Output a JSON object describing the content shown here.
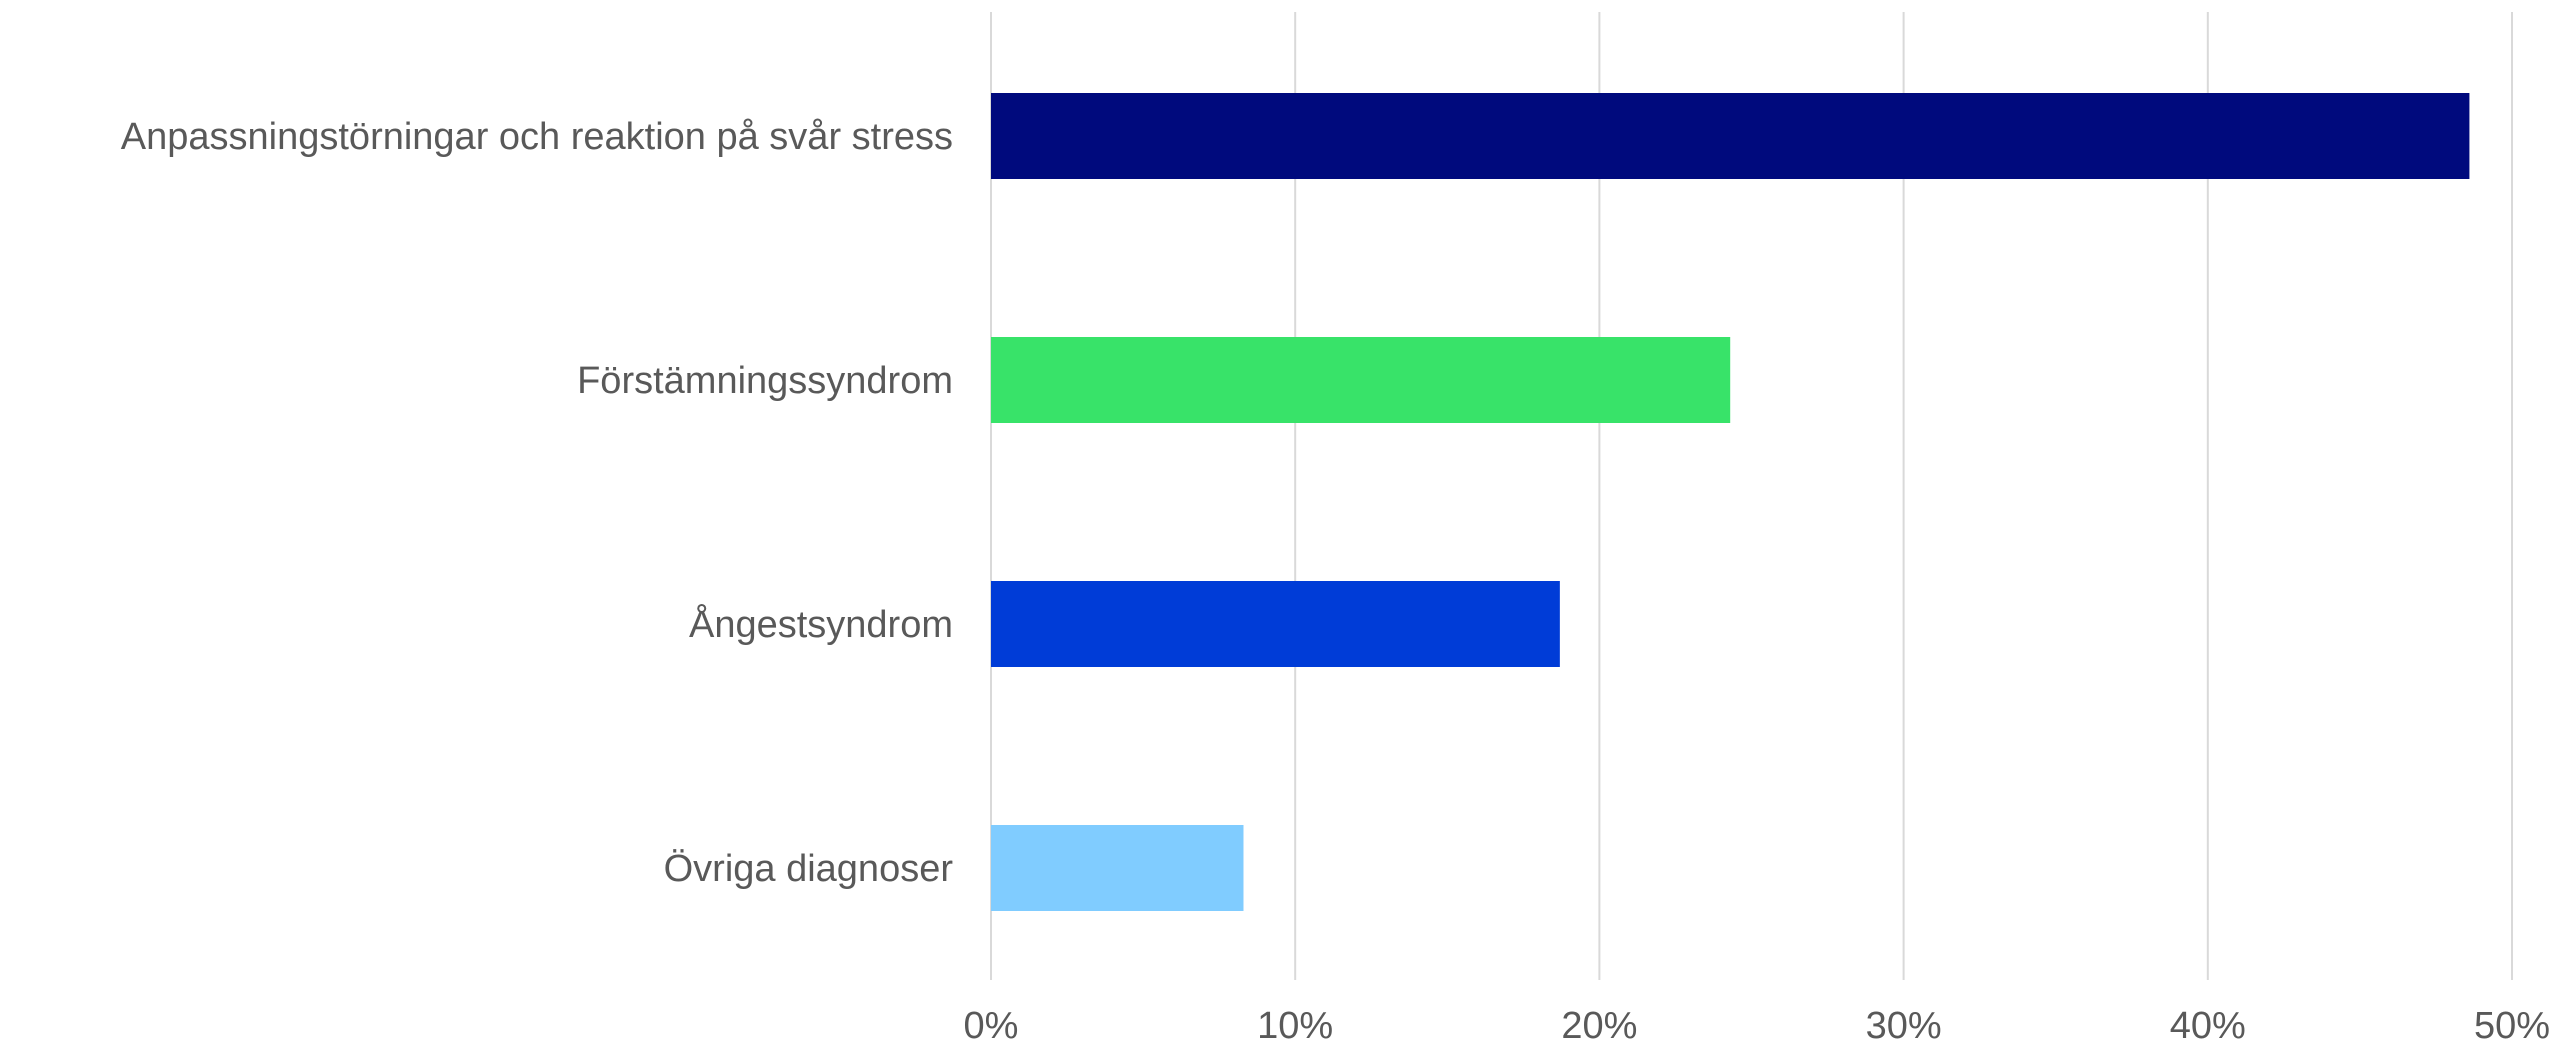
{
  "chart_data": {
    "type": "bar",
    "orientation": "horizontal",
    "categories": [
      "Anpassningstörningar och reaktion på svår stress",
      "Förstämningssyndrom",
      "Ångestsyndrom",
      "Övriga diagnoser"
    ],
    "values": [
      48.6,
      24.3,
      18.7,
      8.3
    ],
    "bar_colors": [
      "#000A7D",
      "#38E369",
      "#003CD7",
      "#80CCFF"
    ],
    "xlim": [
      0,
      50
    ],
    "x_ticks": [
      0,
      10,
      20,
      30,
      40,
      50
    ],
    "x_tick_labels": [
      "0%",
      "10%",
      "20%",
      "30%",
      "40%",
      "50%"
    ],
    "grid": true,
    "legend": "none"
  }
}
